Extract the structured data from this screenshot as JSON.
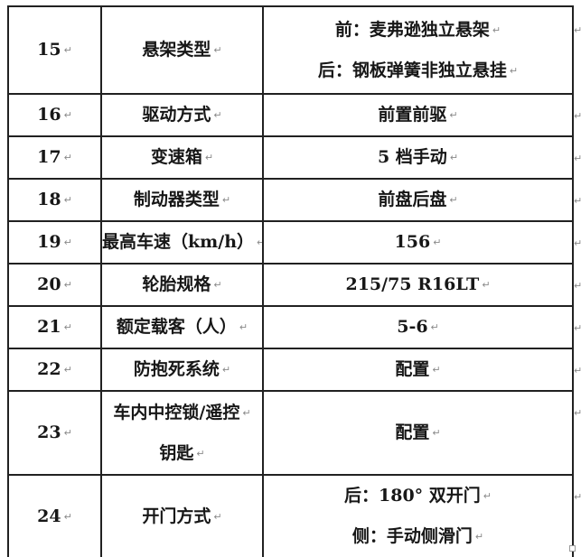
{
  "marks": {
    "return_mark": "↵"
  },
  "rows": [
    {
      "no": "15",
      "label": "悬架类型",
      "value": "前：麦弗逊独立悬架\n后：钢板弹簧非独立悬挂"
    },
    {
      "no": "16",
      "label": "驱动方式",
      "value": "前置前驱"
    },
    {
      "no": "17",
      "label": "变速箱",
      "value": "5 档手动"
    },
    {
      "no": "18",
      "label": "制动器类型",
      "value": "前盘后盘"
    },
    {
      "no": "19",
      "label": "最高车速（km/h）",
      "value": "156"
    },
    {
      "no": "20",
      "label": "轮胎规格",
      "value": "215/75 R16LT"
    },
    {
      "no": "21",
      "label": "额定载客（人）",
      "value": "5-6"
    },
    {
      "no": "22",
      "label": "防抱死系统",
      "value": "配置"
    },
    {
      "no": "23",
      "label": "车内中控锁/遥控\n钥匙",
      "value": "配置"
    },
    {
      "no": "24",
      "label": "开门方式",
      "value": "后：180° 双开门\n侧：手动侧滑门"
    }
  ]
}
